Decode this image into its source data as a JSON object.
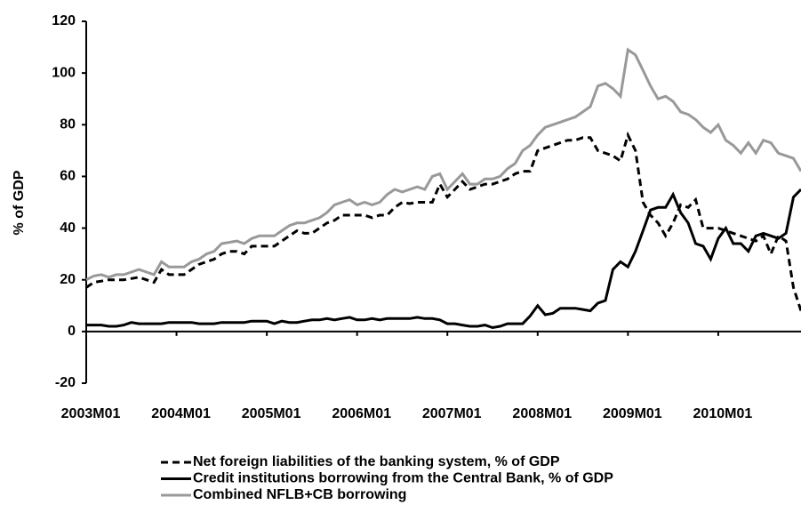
{
  "chart_data": {
    "type": "line",
    "y_label": "% of GDP",
    "categories": [
      "2003M01",
      null,
      null,
      null,
      null,
      null,
      null,
      null,
      null,
      null,
      null,
      null,
      "2004M01",
      null,
      null,
      null,
      null,
      null,
      null,
      null,
      null,
      null,
      null,
      null,
      "2005M01",
      null,
      null,
      null,
      null,
      null,
      null,
      null,
      null,
      null,
      null,
      null,
      "2006M01",
      null,
      null,
      null,
      null,
      null,
      null,
      null,
      null,
      null,
      null,
      null,
      "2007M01",
      null,
      null,
      null,
      null,
      null,
      null,
      null,
      null,
      null,
      null,
      null,
      "2008M01",
      null,
      null,
      null,
      null,
      null,
      null,
      null,
      null,
      null,
      null,
      null,
      "2009M01",
      null,
      null,
      null,
      null,
      null,
      null,
      null,
      null,
      null,
      null,
      null,
      "2010M01",
      null,
      null,
      null,
      null,
      null,
      null,
      null,
      null,
      null,
      null,
      null
    ],
    "series": [
      {
        "name": "Net foreign liabilities of the banking system, % of GDP",
        "color": "#000000",
        "line_style": "dashed",
        "values": [
          17,
          19,
          19.5,
          20,
          20,
          20,
          20.5,
          21,
          20,
          19,
          24,
          22,
          22,
          22,
          24,
          26,
          27,
          28,
          30,
          31,
          31,
          30,
          33,
          33,
          33,
          33,
          35,
          37,
          39,
          38,
          38,
          40,
          42,
          43,
          45,
          45,
          45,
          45,
          44,
          45,
          45,
          48,
          50,
          49.5,
          50,
          50,
          50,
          57,
          52,
          55,
          58,
          55,
          56,
          57,
          57,
          58,
          59,
          61,
          62,
          62,
          70,
          71,
          72,
          73,
          74,
          74,
          75,
          75,
          70,
          69,
          68,
          66,
          76,
          70,
          50,
          45,
          42,
          37,
          42,
          49,
          48,
          51,
          40,
          40,
          40,
          39,
          38,
          37,
          36,
          35,
          37,
          30,
          37,
          35,
          17,
          8
        ]
      },
      {
        "name": "Credit institutions borrowing from the Central Bank, % of GDP",
        "color": "#000000",
        "line_style": "solid",
        "values": [
          2.5,
          2.5,
          2.5,
          2,
          2,
          2.5,
          3.5,
          3,
          3,
          3,
          3,
          3.5,
          3.5,
          3.5,
          3.5,
          3,
          3,
          3,
          3.5,
          3.5,
          3.5,
          3.5,
          4,
          4,
          4,
          3,
          4,
          3.5,
          3.5,
          4,
          4.5,
          4.5,
          5,
          4.5,
          5,
          5.5,
          4.5,
          4.5,
          5,
          4.5,
          5,
          5,
          5,
          5,
          5.5,
          5,
          5,
          4.5,
          3,
          3,
          2.5,
          2,
          2,
          2.5,
          1.5,
          2,
          3,
          3,
          3,
          6,
          10,
          6.5,
          7,
          9,
          9,
          9,
          8.5,
          8,
          11,
          12,
          24,
          27,
          25,
          31,
          39,
          47,
          48,
          48,
          53,
          46,
          42,
          34,
          33,
          28,
          36,
          40,
          34,
          34,
          31,
          37,
          38,
          37,
          36,
          38,
          52,
          55
        ]
      },
      {
        "name": "Combined NFLB+CB borrowing",
        "color": "#999999",
        "line_style": "solid",
        "values": [
          20,
          21.5,
          22,
          21,
          22,
          22,
          23,
          24,
          23,
          22,
          27,
          25,
          25,
          25,
          27,
          28,
          30,
          31,
          34,
          34.5,
          35,
          34,
          36,
          37,
          37,
          37,
          39,
          41,
          42,
          42,
          43,
          44,
          46,
          49,
          50,
          51,
          49,
          50,
          49,
          50,
          53,
          55,
          54,
          55,
          56,
          55,
          60,
          61,
          55,
          58,
          61,
          57,
          57,
          59,
          59,
          60,
          63,
          65,
          70,
          72,
          76,
          79,
          80,
          81,
          82,
          83,
          85,
          87,
          95,
          96,
          94,
          91,
          109,
          107,
          101,
          95,
          90,
          91,
          89,
          85,
          84,
          82,
          79,
          77,
          80,
          74,
          72,
          69,
          73,
          69,
          74,
          73,
          69,
          68,
          67,
          62
        ]
      }
    ],
    "ylim": [
      -20,
      120
    ],
    "yticks": [
      -20,
      0,
      20,
      40,
      60,
      80,
      100,
      120
    ]
  }
}
